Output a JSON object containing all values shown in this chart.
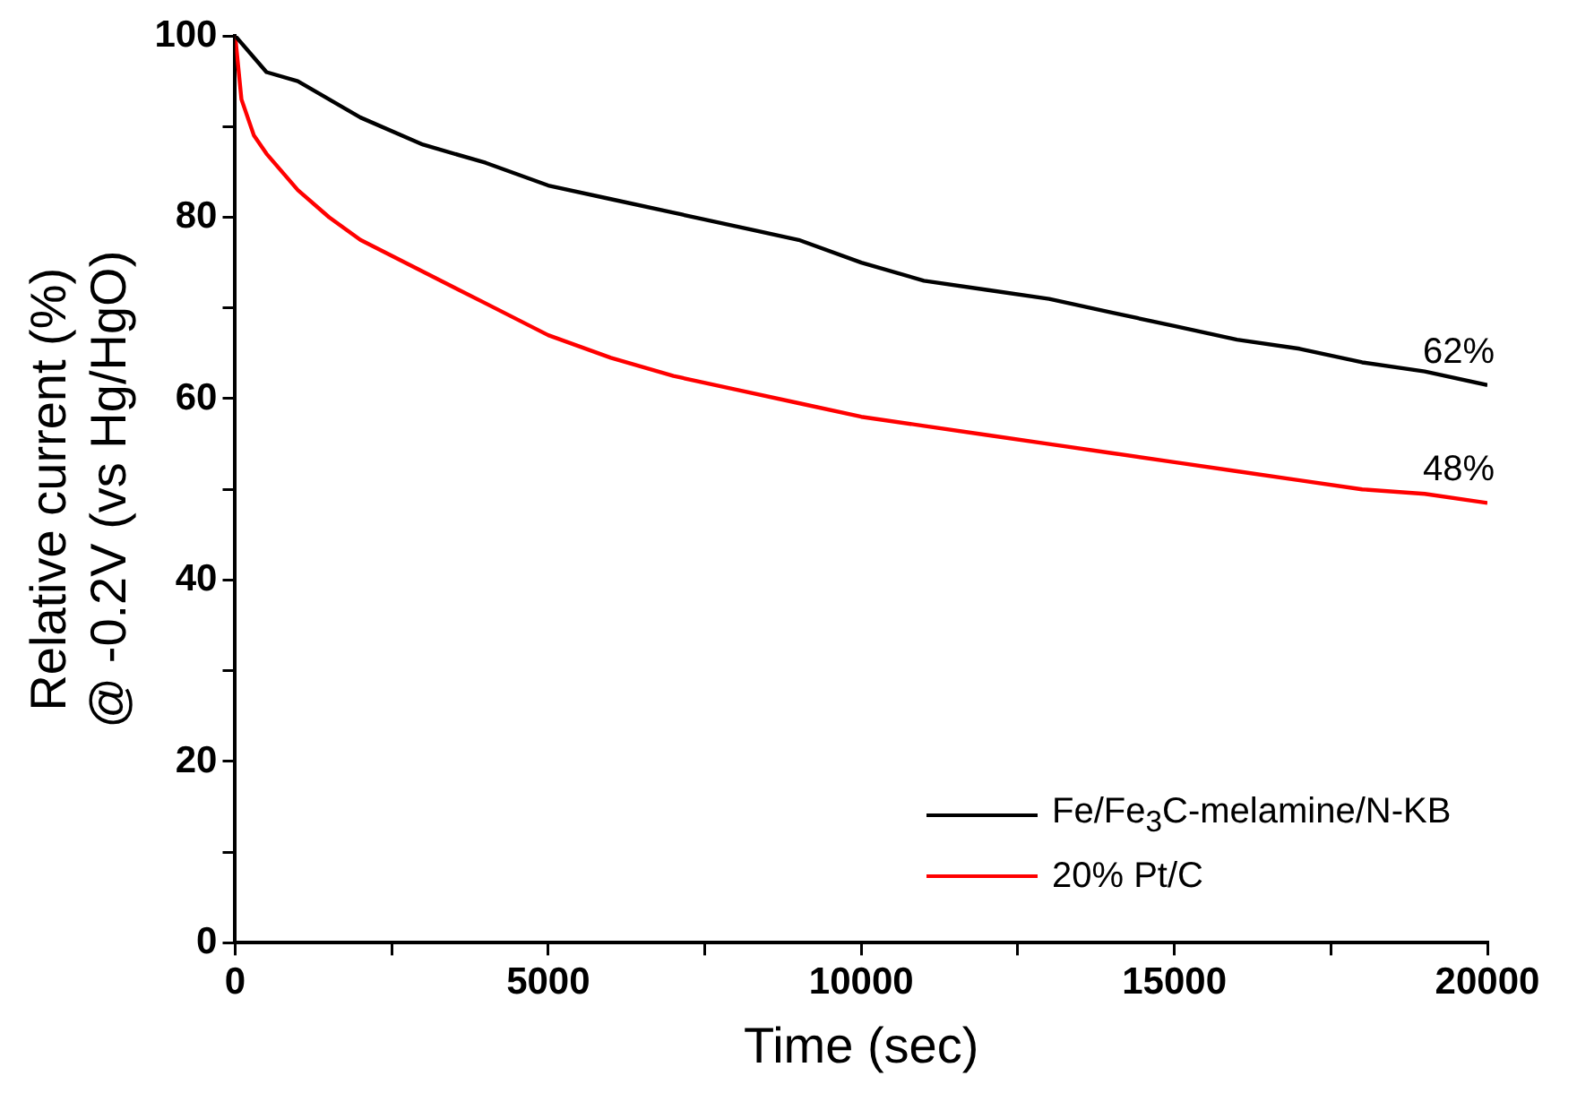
{
  "chart_data": {
    "type": "line",
    "xlabel": "Time (sec)",
    "ylabel": "Relative current (%)\n@ -0.2V (vs Hg/HgO)",
    "xlim": [
      0,
      20000
    ],
    "xticks": [
      0,
      {
        "value": 2500,
        "label": null
      },
      5000,
      {
        "value": 7500,
        "label": null
      },
      10000,
      {
        "value": 12500,
        "label": null
      },
      15000,
      {
        "value": 17500,
        "label": null
      },
      20000
    ],
    "ylim": [
      0,
      100
    ],
    "yticks": [
      0,
      {
        "value": 10,
        "label": null
      },
      20,
      {
        "value": 30,
        "label": null
      },
      40,
      {
        "value": 50,
        "label": null
      },
      60,
      {
        "value": 70,
        "label": null
      },
      80,
      {
        "value": 90,
        "label": null
      },
      100
    ],
    "grid": false,
    "legend": "bottom right",
    "marker": "none",
    "line_style": "solid",
    "series": [
      {
        "name": "Fe/Fe$_{3}$C-melamine/N-KB",
        "color": "#000000",
        "x": [
          0,
          500,
          1000,
          1500,
          2000,
          3000,
          4000,
          5000,
          6000,
          7000,
          8000,
          9000,
          10000,
          11000,
          12000,
          13000,
          14000,
          15000,
          16000,
          17000,
          18000,
          19000,
          20000
        ],
        "values": [
          100,
          96,
          95,
          93,
          91,
          88,
          86,
          83.5,
          82,
          80.5,
          79,
          77.5,
          75,
          73,
          72,
          71,
          69.5,
          68,
          66.5,
          65.5,
          64,
          63,
          61.5
        ]
      },
      {
        "name": "20% Pt/C",
        "color": "#ff0000",
        "x": [
          0,
          100,
          300,
          500,
          1000,
          1500,
          2000,
          3000,
          4000,
          5000,
          6000,
          7000,
          8000,
          9000,
          10000,
          11000,
          12000,
          13000,
          14000,
          15000,
          16000,
          17000,
          18000,
          19000,
          20000
        ],
        "values": [
          100,
          93,
          89,
          87,
          83,
          80,
          77.5,
          74,
          70.5,
          67,
          64.5,
          62.5,
          61,
          59.5,
          58,
          57,
          56,
          55,
          54,
          53,
          52,
          51,
          50,
          49.5,
          48.5
        ]
      }
    ],
    "annotations": [
      {
        "text": "62%",
        "x": 20000,
        "y": 61.5
      },
      {
        "text": "48%",
        "x": 20000,
        "y": 48.5
      }
    ]
  }
}
